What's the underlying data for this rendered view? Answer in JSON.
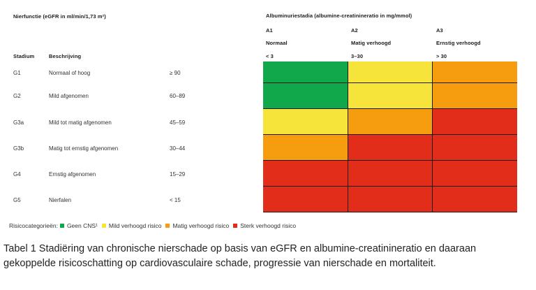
{
  "left_header": "Nierfunctie (eGFR in ml/min/1,73 m²)",
  "col_stadium": "Stadium",
  "col_beschrijving": "Beschrijving",
  "rows": [
    {
      "stage": "G1",
      "desc": "Normaal of hoog",
      "range": "≥ 90",
      "risk": [
        "green",
        "yellow",
        "orange"
      ]
    },
    {
      "stage": "G2",
      "desc": "Mild afgenomen",
      "range": "60–89",
      "risk": [
        "green",
        "yellow",
        "orange"
      ]
    },
    {
      "stage": "G3a",
      "desc": "Mild tot matig afgenomen",
      "range": "45–59",
      "risk": [
        "yellow",
        "orange",
        "red"
      ]
    },
    {
      "stage": "G3b",
      "desc": "Matig tot ernstig afgenomen",
      "range": "30–44",
      "risk": [
        "orange",
        "red",
        "red"
      ]
    },
    {
      "stage": "G4",
      "desc": "Ernstig afgenomen",
      "range": "15–29",
      "risk": [
        "red",
        "red",
        "red"
      ]
    },
    {
      "stage": "G5",
      "desc": "Nierfalen",
      "range": "< 15",
      "risk": [
        "red",
        "red",
        "red"
      ]
    }
  ],
  "albuminuria_header": "Albuminuriestadia (albumine-creatinineratio in mg/mmol)",
  "albuminuria_cols": [
    {
      "code": "A1",
      "label": "Normaal",
      "range": "< 3"
    },
    {
      "code": "A2",
      "label": "Matig verhoogd",
      "range": "3–30"
    },
    {
      "code": "A3",
      "label": "Ernstig verhoogd",
      "range": "> 30"
    }
  ],
  "colors": {
    "green": "#10a84a",
    "yellow": "#f7e43a",
    "orange": "#f59d0e",
    "red": "#e12d19"
  },
  "legend": {
    "prefix": "Risicocategorieën:",
    "items": [
      {
        "color": "green",
        "label": "Geen CNS¹"
      },
      {
        "color": "yellow",
        "label": "Mild verhoogd risico"
      },
      {
        "color": "orange",
        "label": "Matig verhoogd risico"
      },
      {
        "color": "red",
        "label": "Sterk verhoogd risico"
      }
    ]
  },
  "caption": "Tabel 1 Stadiëring van chronische nierschade op basis van eGFR en albumine-creatinineratio en daaraan gekoppelde risicoschatting op cardiovasculaire schade, progressie van nierschade en mortaliteit."
}
